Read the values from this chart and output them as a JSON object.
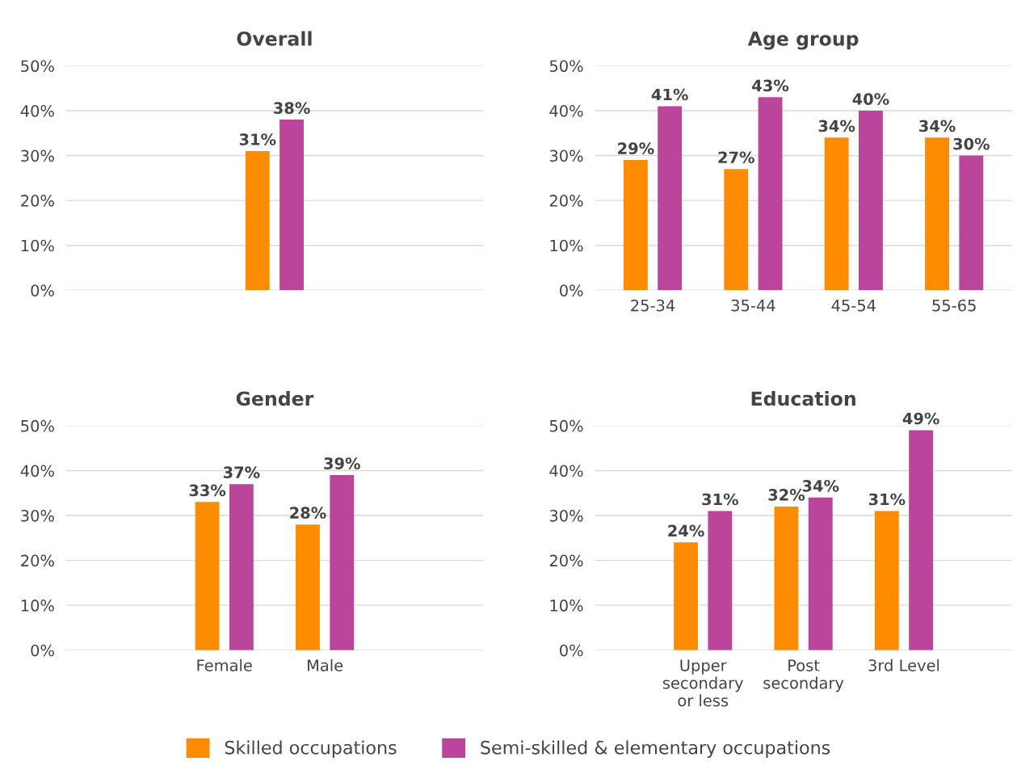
{
  "chart_data": [
    {
      "type": "bar",
      "title": "Overall",
      "categories": [
        null
      ],
      "series": [
        {
          "name": "Skilled occupations",
          "color": "#ff8c00",
          "values": [
            31
          ],
          "value_labels": [
            "31%"
          ]
        },
        {
          "name": "Semi-skilled & elementary occupations",
          "color": "#bb459b",
          "values": [
            38
          ],
          "value_labels": [
            "38%"
          ]
        }
      ],
      "ylim": [
        0,
        50
      ],
      "yticks": [
        {
          "value": 0,
          "label": "0%"
        },
        {
          "value": 10,
          "label": "10%"
        },
        {
          "value": 20,
          "label": "20%"
        },
        {
          "value": 30,
          "label": "30%"
        },
        {
          "value": 40,
          "label": "40%"
        },
        {
          "value": 50,
          "label": "50%"
        }
      ],
      "grid": "y",
      "legend": "bottom"
    },
    {
      "type": "bar",
      "title": "Age group",
      "categories": [
        "25-34",
        "35-44",
        "45-54",
        "55-65"
      ],
      "series": [
        {
          "name": "Skilled occupations",
          "color": "#ff8c00",
          "values": [
            29,
            27,
            34,
            34
          ],
          "value_labels": [
            "29%",
            "27%",
            "34%",
            "34%"
          ]
        },
        {
          "name": "Semi-skilled & elementary occupations",
          "color": "#bb459b",
          "values": [
            41,
            43,
            40,
            30
          ],
          "value_labels": [
            "41%",
            "43%",
            "40%",
            "30%"
          ]
        }
      ],
      "ylim": [
        0,
        50
      ],
      "yticks": [
        {
          "value": 0,
          "label": "0%"
        },
        {
          "value": 10,
          "label": "10%"
        },
        {
          "value": 20,
          "label": "20%"
        },
        {
          "value": 30,
          "label": "30%"
        },
        {
          "value": 40,
          "label": "40%"
        },
        {
          "value": 50,
          "label": "50%"
        }
      ],
      "grid": "y",
      "legend": "bottom"
    },
    {
      "type": "bar",
      "title": "Gender",
      "categories": [
        "Female",
        "Male"
      ],
      "series": [
        {
          "name": "Skilled occupations",
          "color": "#ff8c00",
          "values": [
            33,
            28
          ],
          "value_labels": [
            "33%",
            "28%"
          ]
        },
        {
          "name": "Semi-skilled & elementary occupations",
          "color": "#bb459b",
          "values": [
            37,
            39
          ],
          "value_labels": [
            "37%",
            "39%"
          ]
        }
      ],
      "ylim": [
        0,
        50
      ],
      "yticks": [
        {
          "value": 0,
          "label": "0%"
        },
        {
          "value": 10,
          "label": "10%"
        },
        {
          "value": 20,
          "label": "20%"
        },
        {
          "value": 30,
          "label": "30%"
        },
        {
          "value": 40,
          "label": "40%"
        },
        {
          "value": 50,
          "label": "50%"
        }
      ],
      "grid": "y",
      "legend": "bottom"
    },
    {
      "type": "bar",
      "title": "Education",
      "categories": [
        "Upper\nsecondary\nor less",
        "Post\nsecondary",
        "3rd Level"
      ],
      "series": [
        {
          "name": "Skilled occupations",
          "color": "#ff8c00",
          "values": [
            24,
            32,
            31
          ],
          "value_labels": [
            "24%",
            "32%",
            "31%"
          ]
        },
        {
          "name": "Semi-skilled & elementary occupations",
          "color": "#bb459b",
          "values": [
            31,
            34,
            49
          ],
          "value_labels": [
            "31%",
            "34%",
            "49%"
          ]
        }
      ],
      "ylim": [
        0,
        50
      ],
      "yticks": [
        {
          "value": 0,
          "label": "0%"
        },
        {
          "value": 10,
          "label": "10%"
        },
        {
          "value": 20,
          "label": "20%"
        },
        {
          "value": 30,
          "label": "30%"
        },
        {
          "value": 40,
          "label": "40%"
        },
        {
          "value": 50,
          "label": "50%"
        }
      ],
      "grid": "y",
      "legend": "bottom"
    }
  ]
}
